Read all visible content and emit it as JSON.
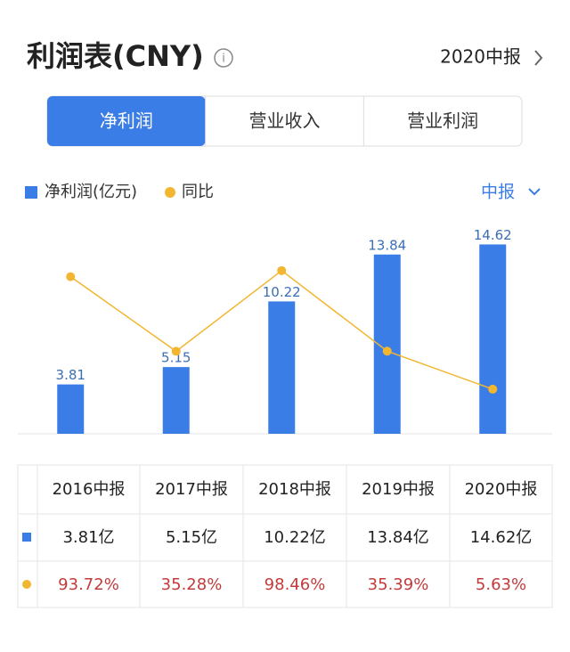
{
  "header": {
    "title": "利润表(CNY)",
    "period": "2020中报"
  },
  "tabs": [
    "净利润",
    "营业收入",
    "营业利润"
  ],
  "period_select": "中报",
  "chart_data": {
    "type": "bar",
    "categories": [
      "2016中报",
      "2017中报",
      "2018中报",
      "2019中报",
      "2020中报"
    ],
    "ylim": [
      0,
      16.3
    ],
    "y2lim": [
      -29.3,
      136
    ],
    "series": [
      {
        "name": "净利润(亿元)",
        "type": "bar",
        "color": "#3a7de6",
        "values": [
          3.81,
          5.15,
          10.22,
          13.84,
          14.62
        ],
        "value_labels": [
          "3.81亿",
          "5.15亿",
          "10.22亿",
          "13.84亿",
          "14.62亿"
        ]
      },
      {
        "name": "同比",
        "type": "line",
        "axis": "y2",
        "color": "#f2b630",
        "values": [
          93.72,
          35.28,
          98.46,
          35.39,
          5.63
        ],
        "value_labels": [
          "93.72%",
          "35.28%",
          "98.46%",
          "35.39%",
          "5.63%"
        ]
      }
    ]
  }
}
